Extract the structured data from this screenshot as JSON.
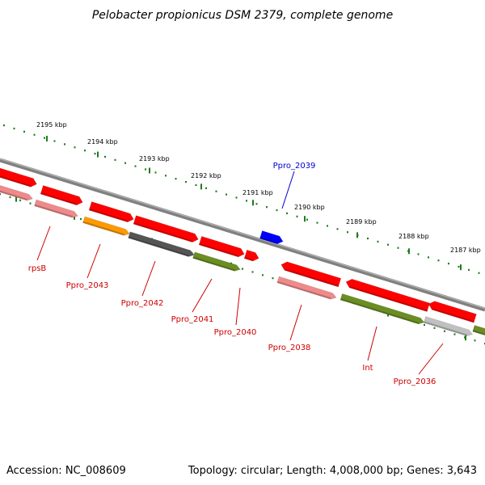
{
  "title": "Pelobacter propionicus DSM 2379, complete genome",
  "footer": {
    "accession": "Accession: NC_008609",
    "summary": "Topology: circular; Length: 4,008,000 bp; Genes: 3,643"
  },
  "colors": {
    "backbone": "#808080",
    "tick": "#1f7a1f",
    "label_red": "#cc0000",
    "label_blue": "#0000cc",
    "gene_red": "#ff0000",
    "gene_pink": "#f08a8a",
    "gene_orange": "#ff9900",
    "gene_dark_gray": "#555555",
    "gene_olive": "#6b8e23",
    "gene_light_gray": "#c0c0c0",
    "gene_blue": "#0000ff"
  },
  "scale_labels": [
    "2195 kbp",
    "2194 kbp",
    "2193 kbp",
    "2192 kbp",
    "2191 kbp",
    "2190 kbp",
    "2189 kbp",
    "2188 kbp",
    "2187 kbp"
  ],
  "gene_labels": [
    {
      "text": "rpsB",
      "color": "red"
    },
    {
      "text": "Ppro_2043",
      "color": "red"
    },
    {
      "text": "Ppro_2042",
      "color": "red"
    },
    {
      "text": "Ppro_2041",
      "color": "red"
    },
    {
      "text": "Ppro_2040",
      "color": "red"
    },
    {
      "text": "Ppro_2039",
      "color": "blue"
    },
    {
      "text": "Ppro_2038",
      "color": "red"
    },
    {
      "text": "Int",
      "color": "red"
    },
    {
      "text": "Ppro_2036",
      "color": "red"
    }
  ]
}
